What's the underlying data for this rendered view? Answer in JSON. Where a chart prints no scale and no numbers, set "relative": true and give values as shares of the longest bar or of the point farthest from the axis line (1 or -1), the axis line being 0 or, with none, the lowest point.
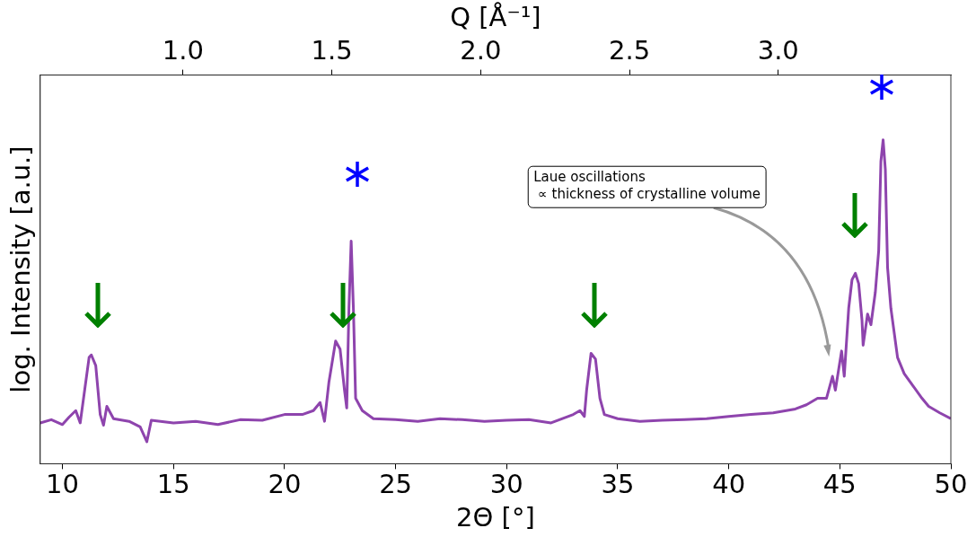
{
  "chart_data": {
    "type": "line",
    "xlabel": "2Θ [°]",
    "ylabel": "log. Intensity [a.u.]",
    "x2label": "Q [Å⁻¹]",
    "relative": true,
    "grid": false,
    "legend": false,
    "marker": "none",
    "line_style": "solid",
    "xlim": [
      9,
      50
    ],
    "xticks": [
      10,
      15,
      20,
      25,
      30,
      35,
      40,
      45,
      50
    ],
    "x2lim": [
      0.52,
      3.58
    ],
    "x2ticks": [
      {
        "value": 1,
        "label": "1.0"
      },
      {
        "value": 1.5,
        "label": "1.5"
      },
      {
        "value": 2,
        "label": "2.0"
      },
      {
        "value": 2.5,
        "label": "2.5"
      },
      {
        "value": 3,
        "label": "3.0"
      }
    ],
    "annotations": [
      "Laue oscillations\n ∝ thickness of crystalline volume"
    ],
    "series": [
      {
        "color": "#8e44ad",
        "x": [
          9,
          9.5,
          10,
          10.3,
          10.6,
          10.8,
          11,
          11.2,
          11.3,
          11.5,
          11.7,
          11.85,
          12,
          12.3,
          13,
          13.5,
          13.8,
          14,
          15,
          16,
          17,
          18,
          19,
          20,
          20.8,
          21.3,
          21.6,
          21.8,
          22,
          22.3,
          22.5,
          22.7,
          22.8,
          22.9,
          23,
          23.1,
          23.2,
          23.5,
          24,
          25,
          26,
          27,
          28,
          29,
          30,
          31,
          32,
          33,
          33.3,
          33.5,
          33.6,
          33.8,
          34,
          34.2,
          34.4,
          35,
          36,
          37,
          38,
          39,
          40,
          41,
          42,
          43,
          43.5,
          44,
          44.4,
          44.67,
          44.8,
          45.08,
          45.2,
          45.4,
          45.55,
          45.7,
          45.85,
          46,
          46.05,
          46.25,
          46.4,
          46.6,
          46.75,
          46.85,
          46.95,
          47.05,
          47.15,
          47.3,
          47.6,
          47.9,
          48.3,
          48.7,
          49,
          49.5,
          50
        ],
        "values": [
          0.126,
          0.136,
          0.121,
          0.144,
          0.164,
          0.126,
          0.227,
          0.328,
          0.336,
          0.303,
          0.152,
          0.119,
          0.177,
          0.139,
          0.131,
          0.114,
          0.068,
          0.134,
          0.126,
          0.131,
          0.121,
          0.136,
          0.134,
          0.152,
          0.152,
          0.164,
          0.189,
          0.131,
          0.253,
          0.379,
          0.354,
          0.227,
          0.172,
          0.48,
          0.687,
          0.48,
          0.202,
          0.164,
          0.139,
          0.136,
          0.131,
          0.139,
          0.136,
          0.131,
          0.134,
          0.136,
          0.126,
          0.152,
          0.164,
          0.146,
          0.227,
          0.341,
          0.323,
          0.202,
          0.152,
          0.139,
          0.131,
          0.134,
          0.136,
          0.139,
          0.146,
          0.152,
          0.157,
          0.169,
          0.182,
          0.202,
          0.202,
          0.27,
          0.227,
          0.348,
          0.27,
          0.48,
          0.568,
          0.588,
          0.556,
          0.442,
          0.366,
          0.462,
          0.429,
          0.53,
          0.657,
          0.934,
          1,
          0.909,
          0.606,
          0.48,
          0.328,
          0.278,
          0.24,
          0.202,
          0.177,
          0.157,
          0.139
        ]
      }
    ]
  }
}
